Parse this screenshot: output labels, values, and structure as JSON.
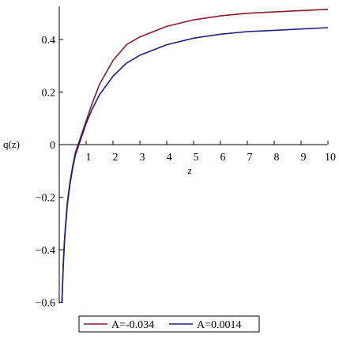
{
  "chart_data": {
    "type": "line",
    "xlabel": "z",
    "ylabel": "q(z)",
    "xlim": [
      0,
      10
    ],
    "ylim": [
      -0.6,
      0.52
    ],
    "xticks": [
      1,
      2,
      3,
      4,
      5,
      6,
      7,
      8,
      9,
      10
    ],
    "xtick_labels": [
      "1",
      "2",
      "3",
      "4",
      "5",
      "6",
      "7",
      "8",
      "9",
      "10"
    ],
    "yticks": [
      0.4,
      0.2,
      0,
      -0.2,
      -0.4,
      -0.6
    ],
    "ytick_labels": [
      "0.4",
      "0.2",
      "0",
      "−0.2",
      "−0.4",
      "−0.6"
    ],
    "grid": false,
    "legend_position": "bottom",
    "series": [
      {
        "name": "A=-0.034",
        "color": "#8b1a2b",
        "x": [
          0.1,
          0.15,
          0.2,
          0.3,
          0.4,
          0.5,
          0.6,
          0.7,
          0.8,
          0.9,
          1.0,
          1.2,
          1.5,
          2.0,
          2.5,
          3.0,
          4.0,
          5.0,
          6.0,
          7.0,
          8.0,
          9.0,
          10.0
        ],
        "y": [
          -0.6,
          -0.45,
          -0.35,
          -0.22,
          -0.14,
          -0.08,
          -0.03,
          0.0,
          0.03,
          0.06,
          0.09,
          0.15,
          0.23,
          0.32,
          0.38,
          0.41,
          0.45,
          0.475,
          0.49,
          0.5,
          0.505,
          0.51,
          0.515
        ]
      },
      {
        "name": "A=0.0014",
        "color": "#1a237e",
        "x": [
          0.1,
          0.15,
          0.2,
          0.3,
          0.4,
          0.5,
          0.6,
          0.7,
          0.8,
          0.9,
          1.0,
          1.2,
          1.5,
          2.0,
          2.5,
          3.0,
          4.0,
          5.0,
          6.0,
          7.0,
          8.0,
          9.0,
          10.0
        ],
        "y": [
          -0.6,
          -0.46,
          -0.36,
          -0.23,
          -0.15,
          -0.09,
          -0.04,
          -0.01,
          0.02,
          0.05,
          0.08,
          0.13,
          0.19,
          0.26,
          0.31,
          0.34,
          0.38,
          0.405,
          0.42,
          0.43,
          0.435,
          0.44,
          0.445
        ]
      }
    ]
  }
}
